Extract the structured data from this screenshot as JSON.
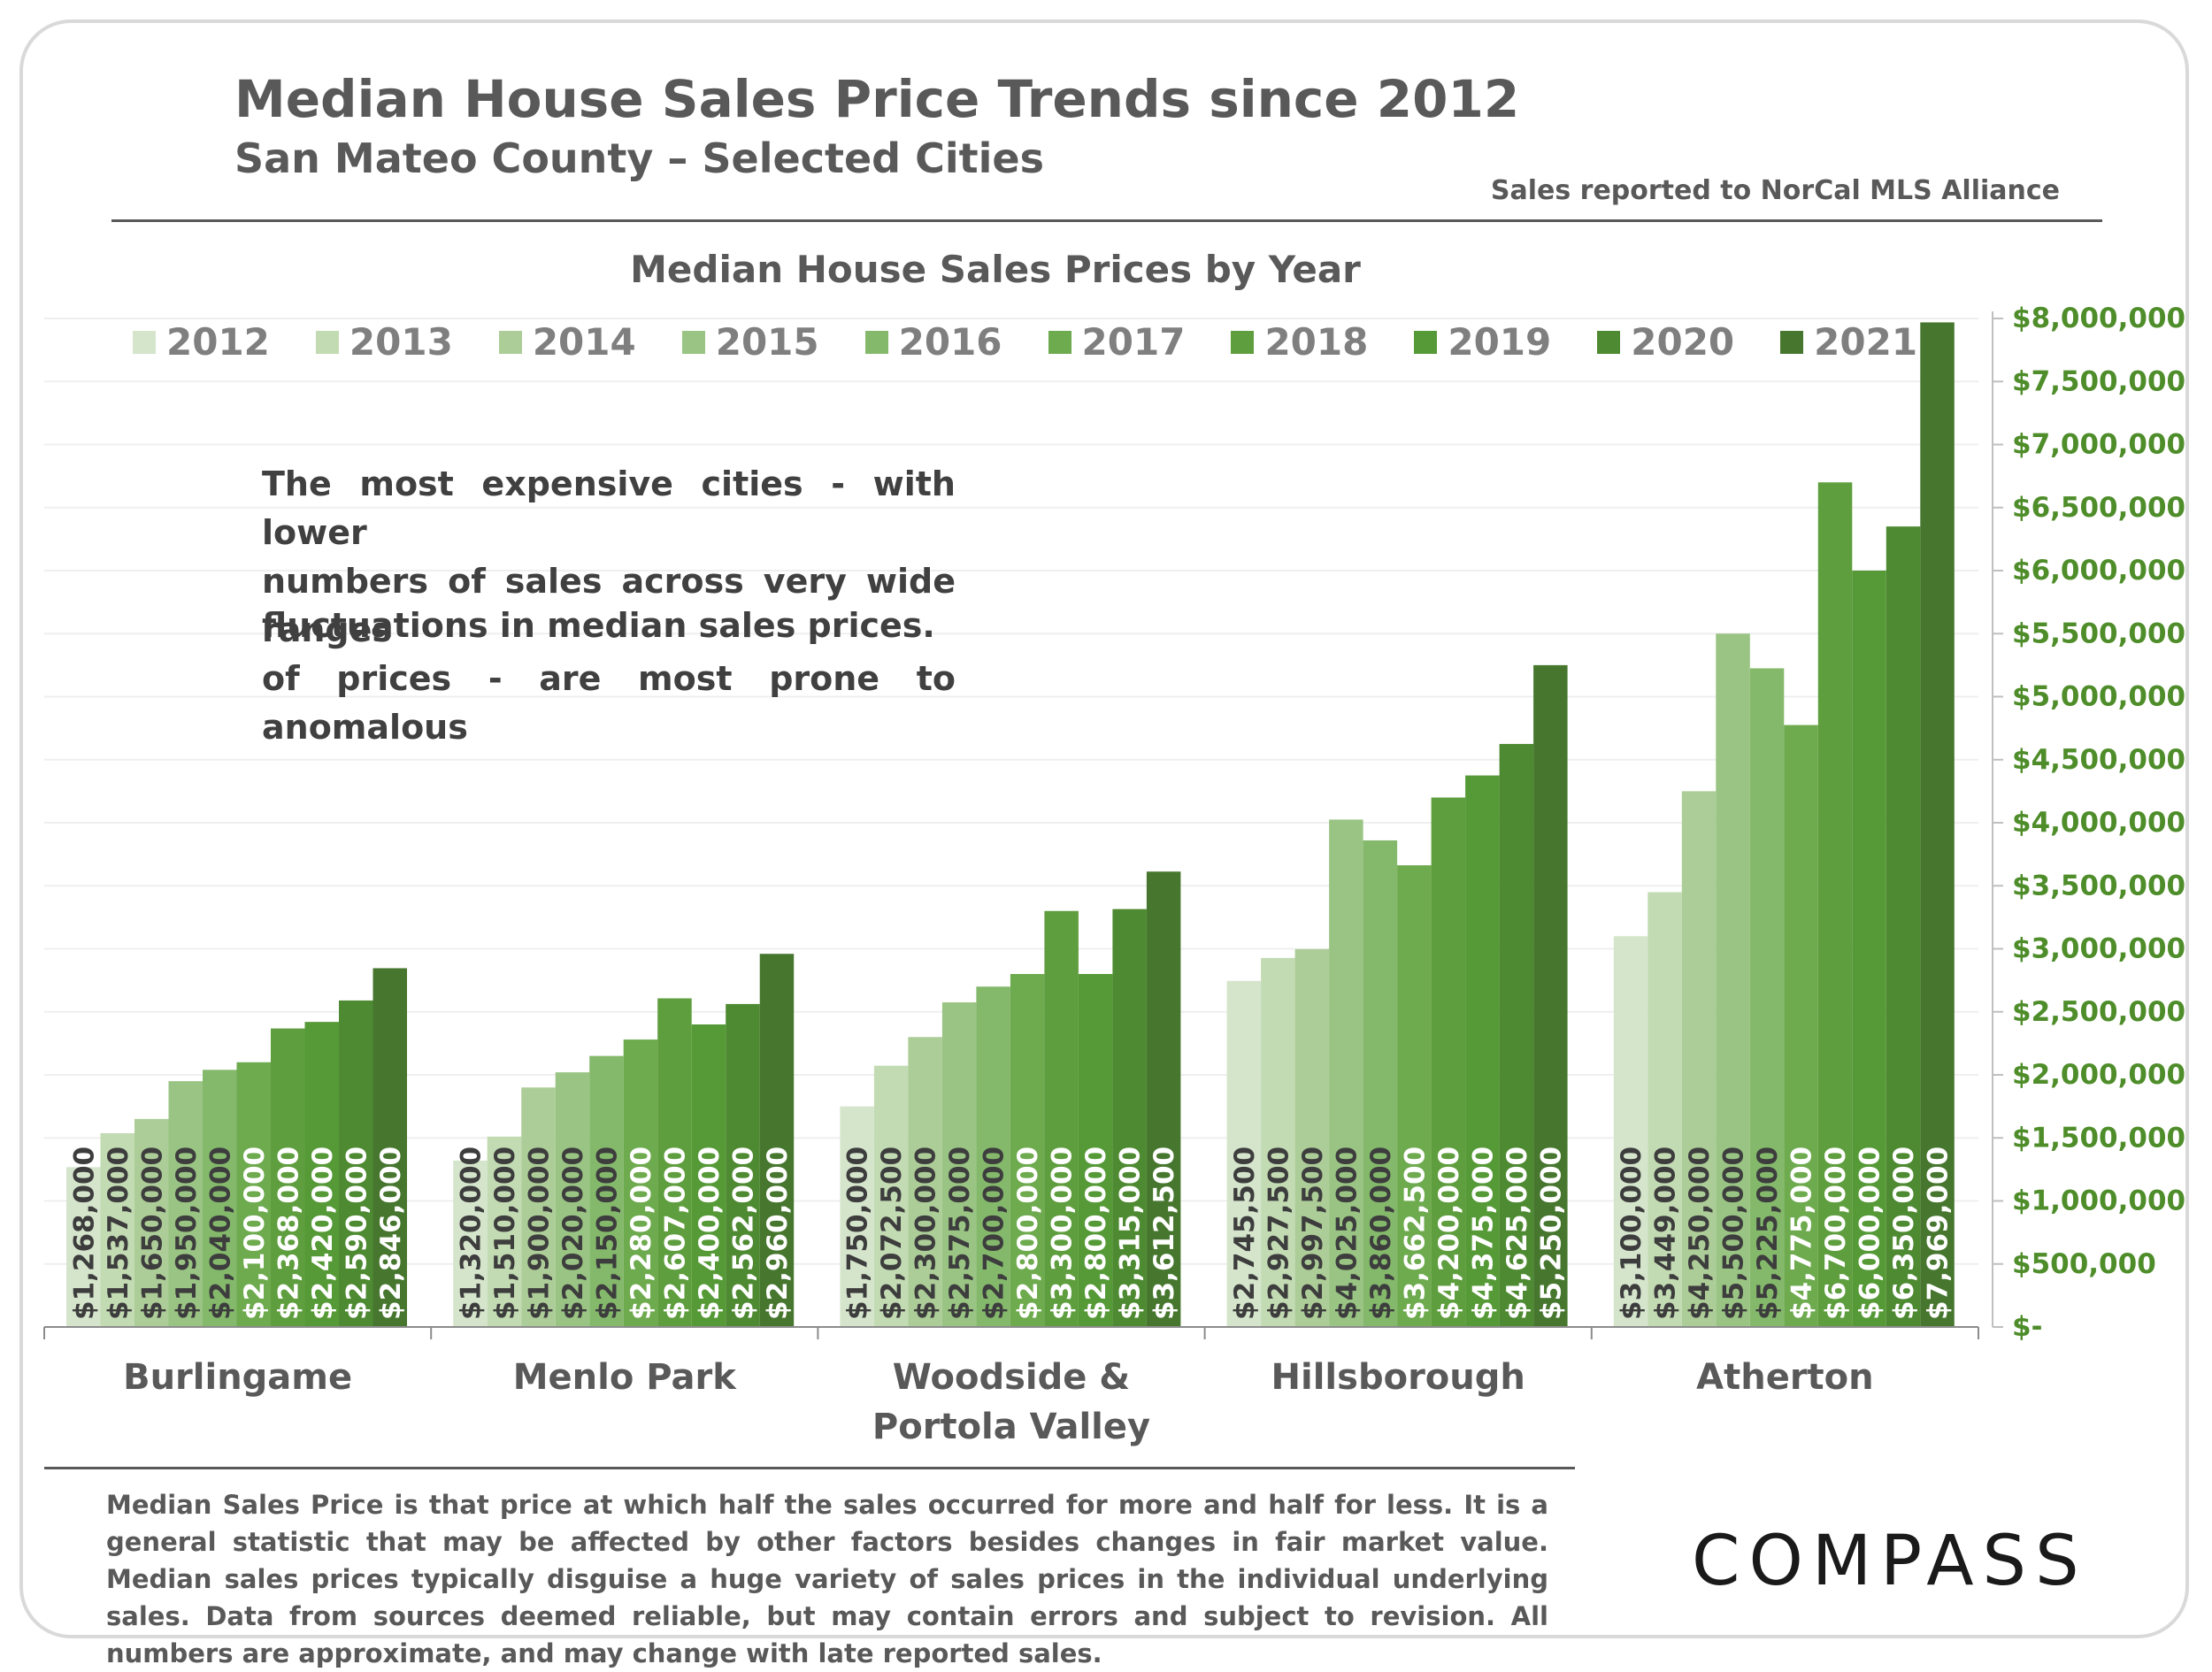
{
  "header": {
    "title": "Median House Sales Price Trends since 2012",
    "subtitle": "San Mateo County – Selected Cities",
    "source": "Sales reported to NorCal MLS Alliance"
  },
  "annotation": {
    "line1": "The most expensive cities - with lower",
    "line2": "numbers of sales across very wide ranges",
    "line3": "of prices - are most prone to anomalous",
    "line4": "fluctuations in median sales prices."
  },
  "footnote": "Median Sales Price is that price at which half the sales occurred for more and half for less. It is a general statistic that may be affected by other factors besides changes in fair market value. Median sales prices typically disguise a huge variety of sales prices in the individual underlying sales. Data from sources deemed reliable, but may contain errors and subject to revision.  All numbers are approximate, and may change with late reported sales.",
  "logo": "COMPASS",
  "colors": {
    "text_gray": "#595959",
    "axis_green": "#4e8d2a",
    "series": [
      "#d5e5cc",
      "#c2dbb3",
      "#adcd98",
      "#99c483",
      "#84b96c",
      "#6eaa4e",
      "#5f9e3e",
      "#569a38",
      "#4e8a31",
      "#47772f"
    ]
  },
  "chart_data": {
    "type": "bar",
    "title": "Median House Sales Prices by Year",
    "categories": [
      [
        "Burlingame"
      ],
      [
        "Menlo Park"
      ],
      [
        "Woodside &",
        "Portola Valley"
      ],
      [
        "Hillsborough"
      ],
      [
        "Atherton"
      ]
    ],
    "series": [
      {
        "name": "2012",
        "values": [
          1268000,
          1320000,
          1750000,
          2745500,
          3100000
        ],
        "labels": [
          "$1,268,000",
          "$1,320,000",
          "$1,750,000",
          "$2,745,500",
          "$3,100,000"
        ]
      },
      {
        "name": "2013",
        "values": [
          1537000,
          1510000,
          2072500,
          2927500,
          3449000
        ],
        "labels": [
          "$1,537,000",
          "$1,510,000",
          "$2,072,500",
          "$2,927,500",
          "$3,449,000"
        ]
      },
      {
        "name": "2014",
        "values": [
          1650000,
          1900000,
          2300000,
          2997500,
          4250000
        ],
        "labels": [
          "$1,650,000",
          "$1,900,000",
          "$2,300,000",
          "$2,997,500",
          "$4,250,000"
        ]
      },
      {
        "name": "2015",
        "values": [
          1950000,
          2020000,
          2575000,
          4025000,
          5500000
        ],
        "labels": [
          "$1,950,000",
          "$2,020,000",
          "$2,575,000",
          "$4,025,000",
          "$5,500,000"
        ]
      },
      {
        "name": "2016",
        "values": [
          2040000,
          2150000,
          2700000,
          3860000,
          5225000
        ],
        "labels": [
          "$2,040,000",
          "$2,150,000",
          "$2,700,000",
          "$3,860,000",
          "$5,225,000"
        ]
      },
      {
        "name": "2017",
        "values": [
          2100000,
          2280000,
          2800000,
          3662500,
          4775000
        ],
        "labels": [
          "$2,100,000",
          "$2,280,000",
          "$2,800,000",
          "$3,662,500",
          "$4,775,000"
        ]
      },
      {
        "name": "2018",
        "values": [
          2368000,
          2607000,
          3300000,
          4200000,
          6700000
        ],
        "labels": [
          "$2,368,000",
          "$2,607,000",
          "$3,300,000",
          "$4,200,000",
          "$6,700,000"
        ]
      },
      {
        "name": "2019",
        "values": [
          2420000,
          2400000,
          2800000,
          4375000,
          6000000
        ],
        "labels": [
          "$2,420,000",
          "$2,400,000",
          "$2,800,000",
          "$4,375,000",
          "$6,000,000"
        ]
      },
      {
        "name": "2020",
        "values": [
          2590000,
          2562000,
          3315000,
          4625000,
          6350000
        ],
        "labels": [
          "$2,590,000",
          "$2,562,000",
          "$3,315,000",
          "$4,625,000",
          "$6,350,000"
        ]
      },
      {
        "name": "2021",
        "values": [
          2846000,
          2960000,
          3612500,
          5250000,
          7969000
        ],
        "labels": [
          "$2,846,000",
          "$2,960,000",
          "$3,612,500",
          "$5,250,000",
          "$7,969,000"
        ]
      }
    ],
    "ylim": [
      0,
      8000000
    ],
    "yticks": [
      0,
      500000,
      1000000,
      1500000,
      2000000,
      2500000,
      3000000,
      3500000,
      4000000,
      4500000,
      5000000,
      5500000,
      6000000,
      6500000,
      7000000,
      7500000,
      8000000
    ],
    "ytick_labels": [
      "$-",
      "$500,000",
      "$1,000,000",
      "$1,500,000",
      "$2,000,000",
      "$2,500,000",
      "$3,000,000",
      "$3,500,000",
      "$4,000,000",
      "$4,500,000",
      "$5,000,000",
      "$5,500,000",
      "$6,000,000",
      "$6,500,000",
      "$7,000,000",
      "$7,500,000",
      "$8,000,000"
    ],
    "y_axis_side": "right",
    "grid": true,
    "legend": "top"
  }
}
